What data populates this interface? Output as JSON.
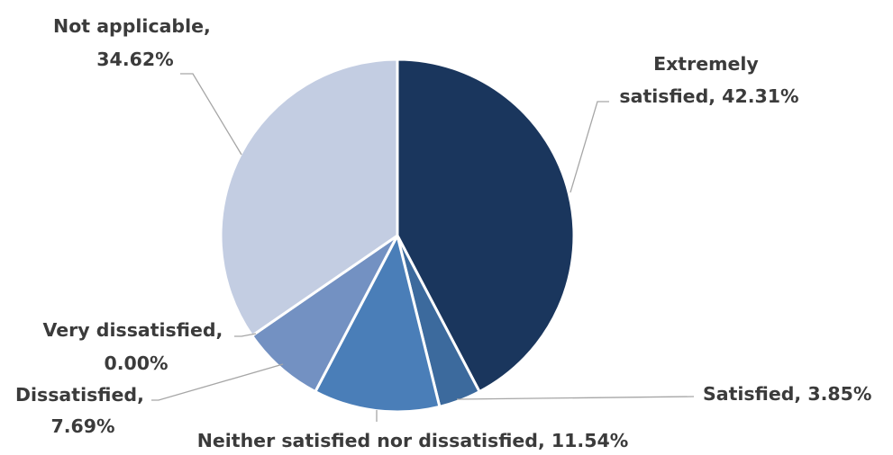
{
  "chart_data": {
    "type": "pie",
    "title": "",
    "slices": [
      {
        "label": "Extremely satisfied",
        "value": 42.31,
        "display": "42.31%",
        "color": "#1a365d"
      },
      {
        "label": "Satisfied",
        "value": 3.85,
        "display": "3.85%",
        "color": "#3c6a9d"
      },
      {
        "label": "Neither satisfied nor dissatisfied",
        "value": 11.54,
        "display": "11.54%",
        "color": "#4a7eb8"
      },
      {
        "label": "Dissatisfied",
        "value": 7.69,
        "display": "7.69%",
        "color": "#7391c2"
      },
      {
        "label": "Very dissatisfied",
        "value": 0.0,
        "display": "0.00%",
        "color": "#97abd3"
      },
      {
        "label": "Not applicable",
        "value": 34.62,
        "display": "34.62%",
        "color": "#c3cde2"
      }
    ],
    "data_labels": [
      {
        "line1": "Extremely",
        "line2": "satisfied, 42.31%"
      },
      {
        "line1": "Satisfied, 3.85%",
        "line2": ""
      },
      {
        "line1": "Neither satisfied nor dissatisfied, 11.54%",
        "line2": ""
      },
      {
        "line1": "Dissatisfied,",
        "line2": "7.69%"
      },
      {
        "line1": "Very dissatisfied,",
        "line2": "0.00%"
      },
      {
        "line1": "Not applicable,",
        "line2": "34.62%"
      }
    ],
    "legend": "none",
    "start_angle_deg": 0,
    "direction": "clockwise"
  }
}
